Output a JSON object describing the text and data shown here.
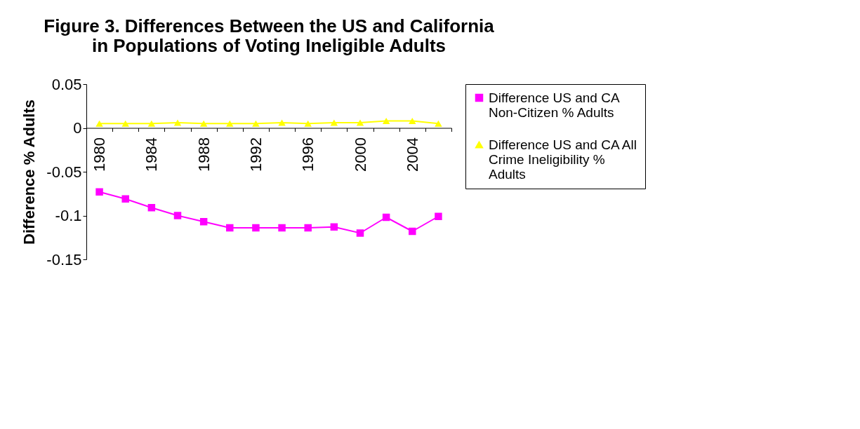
{
  "chart_data": {
    "type": "line",
    "title": "Figure 3. Differences Between the US and California in Populations of Voting Ineligible Adults",
    "ylabel": "Difference % Adults",
    "categories": [
      "1980",
      null,
      "1984",
      null,
      "1988",
      null,
      "1992",
      null,
      "1996",
      null,
      "2000",
      null,
      "2004",
      null
    ],
    "series": [
      {
        "name": "Difference US and CA Non-Citizen % Adults",
        "color": "#ff00ff",
        "marker": "square",
        "values": [
          -0.073,
          -0.081,
          -0.091,
          -0.1,
          -0.107,
          -0.114,
          -0.114,
          -0.114,
          -0.114,
          -0.113,
          -0.12,
          -0.102,
          -0.118,
          -0.101
        ]
      },
      {
        "name": "Difference US and CA All Crime Ineligibility % Adults",
        "color": "#ffff00",
        "marker": "triangle",
        "values": [
          0.005,
          0.005,
          0.005,
          0.006,
          0.005,
          0.005,
          0.005,
          0.006,
          0.005,
          0.006,
          0.006,
          0.008,
          0.008,
          0.005
        ]
      }
    ],
    "ylim": [
      -0.15,
      0.05
    ],
    "yticks": [
      0.05,
      0,
      -0.05,
      -0.1,
      -0.15
    ],
    "grid": false,
    "legend": "right"
  }
}
